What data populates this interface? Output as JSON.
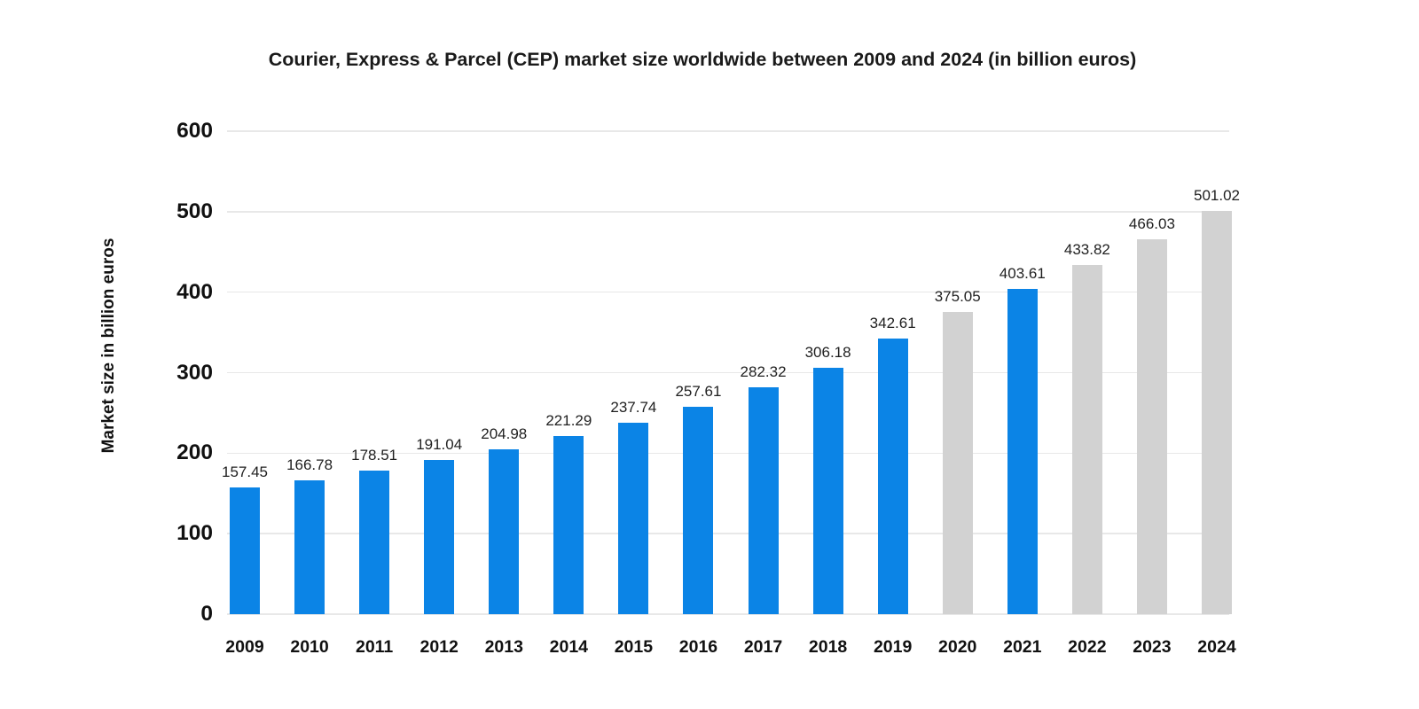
{
  "chart_data": {
    "type": "bar",
    "title": "Courier, Express & Parcel (CEP) market size worldwide between 2009 and 2024 (in billion euros)",
    "xlabel": "",
    "ylabel": "Market size in billion euros",
    "categories": [
      "2009",
      "2010",
      "2011",
      "2012",
      "2013",
      "2014",
      "2015",
      "2016",
      "2017",
      "2018",
      "2019",
      "2020",
      "2021",
      "2022",
      "2023",
      "2024"
    ],
    "values": [
      157.45,
      166.78,
      178.51,
      191.04,
      204.98,
      221.29,
      237.74,
      257.61,
      282.32,
      306.18,
      342.61,
      375.05,
      403.61,
      433.82,
      466.03,
      501.02
    ],
    "value_label_decimals": 2,
    "ylim": [
      0,
      600
    ],
    "yticks": [
      0,
      100,
      200,
      300,
      400,
      500,
      600
    ],
    "grid": true,
    "legend_position": "none",
    "bar_color": "#0b84e6",
    "muted_bar_color": "#d2d2d2",
    "muted_categories": [
      "2020",
      "2022",
      "2023",
      "2024"
    ],
    "gridline_color": "#e8e8e8",
    "background_color": "#ffffff",
    "text_color": "#111111"
  }
}
